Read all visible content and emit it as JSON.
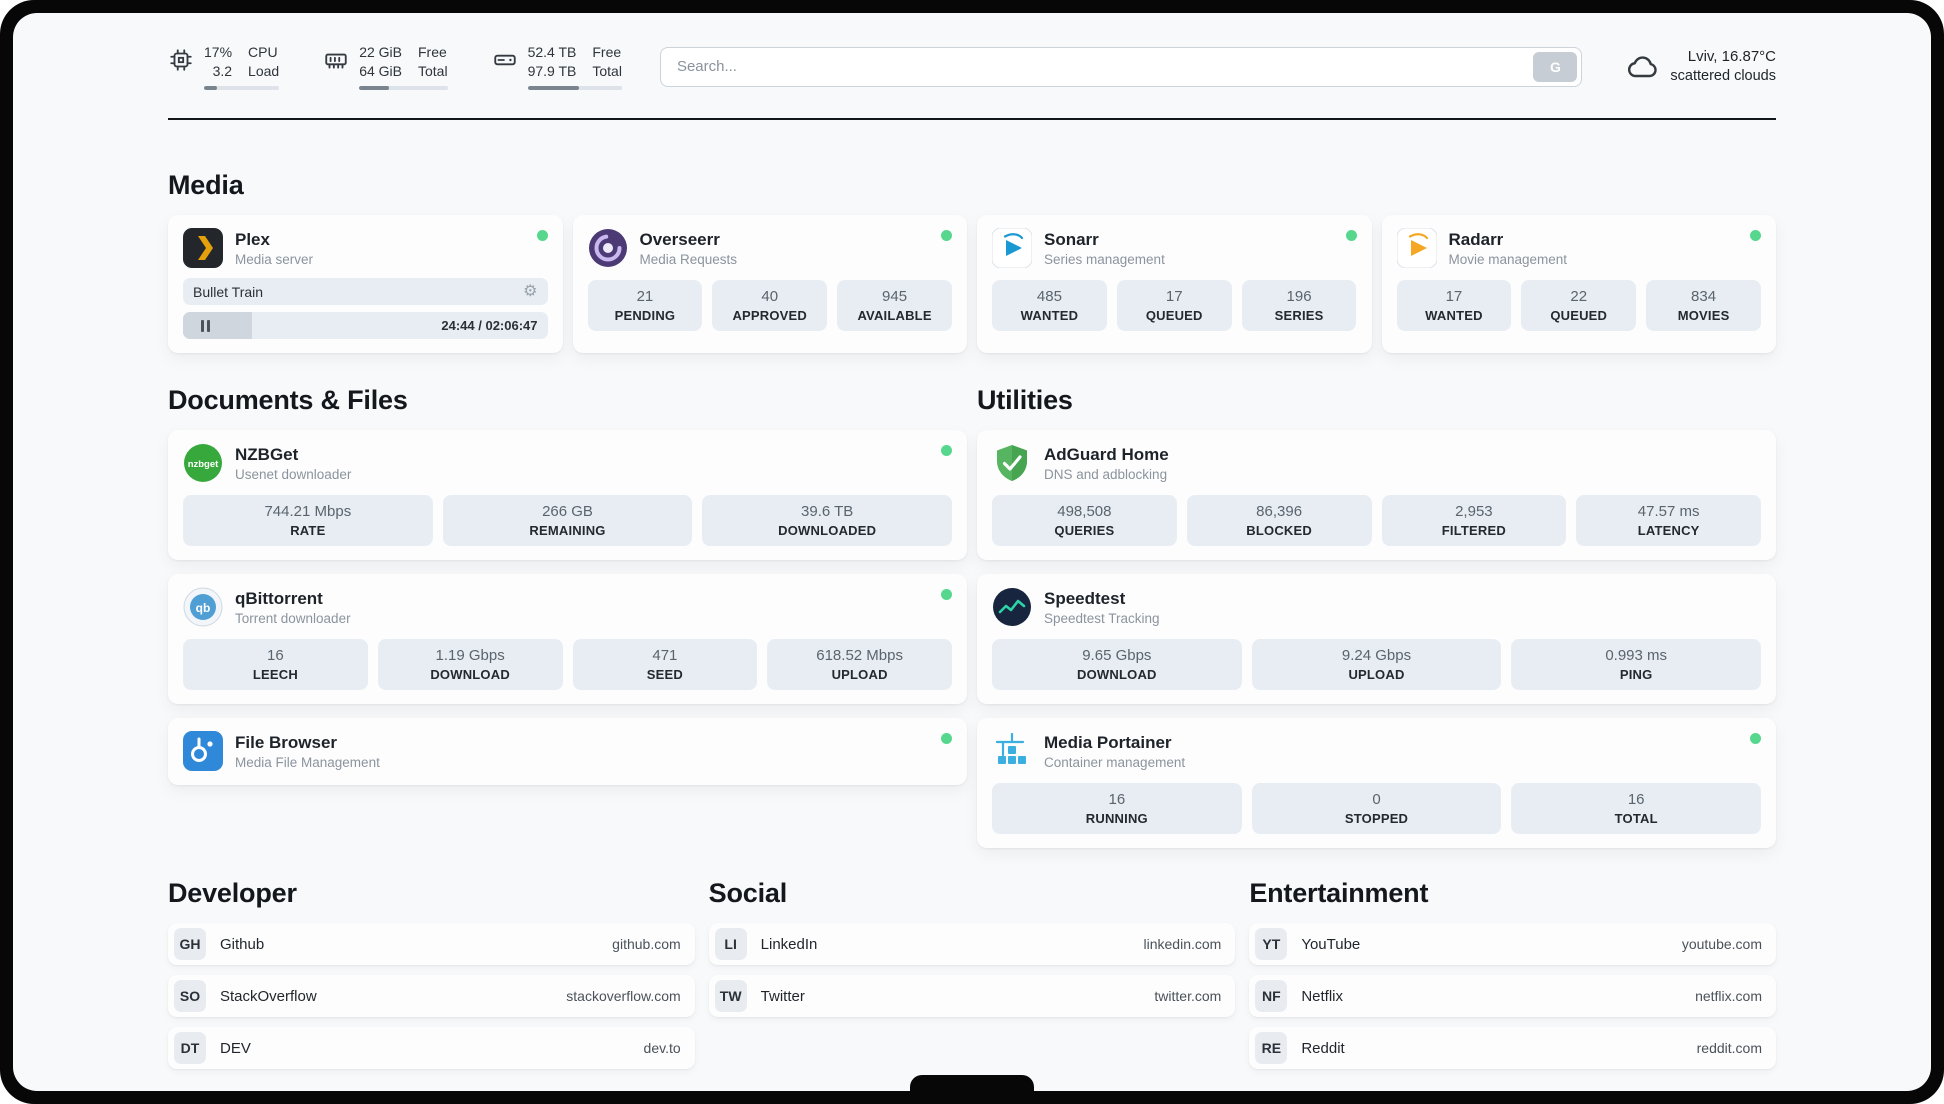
{
  "topbar": {
    "cpu": {
      "value_top": "17%",
      "value_bottom": "3.2",
      "label_top": "CPU",
      "label_bottom": "Load",
      "progress": 17
    },
    "memory": {
      "value_top": "22 GiB",
      "value_bottom": "64 GiB",
      "label_top": "Free",
      "label_bottom": "Total",
      "progress": 34
    },
    "disk": {
      "value_top": "52.4 TB",
      "value_bottom": "97.9 TB",
      "label_top": "Free",
      "label_bottom": "Total",
      "progress": 54
    },
    "search": {
      "placeholder": "Search...",
      "button_label": "G"
    },
    "weather": {
      "location": "Lviv, 16.87°C",
      "condition": "scattered clouds"
    }
  },
  "sections": {
    "media": "Media",
    "documents": "Documents & Files",
    "utilities": "Utilities",
    "developer": "Developer",
    "social": "Social",
    "entertainment": "Entertainment"
  },
  "apps": {
    "plex": {
      "name": "Plex",
      "subtitle": "Media server",
      "now_playing": "Bullet Train",
      "time": "24:44 / 02:06:47",
      "progress": 19
    },
    "overseerr": {
      "name": "Overseerr",
      "subtitle": "Media Requests",
      "stats": [
        {
          "value": "21",
          "label": "PENDING"
        },
        {
          "value": "40",
          "label": "APPROVED"
        },
        {
          "value": "945",
          "label": "AVAILABLE"
        }
      ]
    },
    "sonarr": {
      "name": "Sonarr",
      "subtitle": "Series management",
      "stats": [
        {
          "value": "485",
          "label": "WANTED"
        },
        {
          "value": "17",
          "label": "QUEUED"
        },
        {
          "value": "196",
          "label": "SERIES"
        }
      ]
    },
    "radarr": {
      "name": "Radarr",
      "subtitle": "Movie management",
      "stats": [
        {
          "value": "17",
          "label": "WANTED"
        },
        {
          "value": "22",
          "label": "QUEUED"
        },
        {
          "value": "834",
          "label": "MOVIES"
        }
      ]
    },
    "nzbget": {
      "name": "NZBGet",
      "subtitle": "Usenet downloader",
      "icon_text": "nzbget",
      "stats": [
        {
          "value": "744.21 Mbps",
          "label": "RATE"
        },
        {
          "value": "266 GB",
          "label": "REMAINING"
        },
        {
          "value": "39.6 TB",
          "label": "DOWNLOADED"
        }
      ]
    },
    "qbittorrent": {
      "name": "qBittorrent",
      "subtitle": "Torrent downloader",
      "icon_text": "qb",
      "stats": [
        {
          "value": "16",
          "label": "LEECH"
        },
        {
          "value": "1.19 Gbps",
          "label": "DOWNLOAD"
        },
        {
          "value": "471",
          "label": "SEED"
        },
        {
          "value": "618.52 Mbps",
          "label": "UPLOAD"
        }
      ]
    },
    "filebrowser": {
      "name": "File Browser",
      "subtitle": "Media File Management"
    },
    "adguard": {
      "name": "AdGuard Home",
      "subtitle": "DNS and adblocking",
      "stats": [
        {
          "value": "498,508",
          "label": "QUERIES"
        },
        {
          "value": "86,396",
          "label": "BLOCKED"
        },
        {
          "value": "2,953",
          "label": "FILTERED"
        },
        {
          "value": "47.57 ms",
          "label": "LATENCY"
        }
      ]
    },
    "speedtest": {
      "name": "Speedtest",
      "subtitle": "Speedtest Tracking",
      "stats": [
        {
          "value": "9.65 Gbps",
          "label": "DOWNLOAD"
        },
        {
          "value": "9.24 Gbps",
          "label": "UPLOAD"
        },
        {
          "value": "0.993 ms",
          "label": "PING"
        }
      ]
    },
    "portainer": {
      "name": "Media Portainer",
      "subtitle": "Container management",
      "stats": [
        {
          "value": "16",
          "label": "RUNNING"
        },
        {
          "value": "0",
          "label": "STOPPED"
        },
        {
          "value": "16",
          "label": "TOTAL"
        }
      ]
    }
  },
  "bookmarks": {
    "developer": [
      {
        "badge": "GH",
        "name": "Github",
        "url": "github.com"
      },
      {
        "badge": "SO",
        "name": "StackOverflow",
        "url": "stackoverflow.com"
      },
      {
        "badge": "DT",
        "name": "DEV",
        "url": "dev.to"
      }
    ],
    "social": [
      {
        "badge": "LI",
        "name": "LinkedIn",
        "url": "linkedin.com"
      },
      {
        "badge": "TW",
        "name": "Twitter",
        "url": "twitter.com"
      }
    ],
    "entertainment": [
      {
        "badge": "YT",
        "name": "YouTube",
        "url": "youtube.com"
      },
      {
        "badge": "NF",
        "name": "Netflix",
        "url": "netflix.com"
      },
      {
        "badge": "RE",
        "name": "Reddit",
        "url": "reddit.com"
      }
    ]
  },
  "icons": {
    "gear": "⚙"
  },
  "colors": {
    "status_green": "#57d78e",
    "accent_plex": "#e5a00d",
    "accent_sonarr": "#1999d3",
    "accent_radarr": "#f5a623",
    "accent_adguard": "#57b460",
    "accent_portainer": "#3bb0e0",
    "accent_overseerr": "#4c3a75",
    "accent_nzbget": "#37a93c",
    "accent_qbittorrent": "#4f9fd4",
    "accent_filebrowser": "#2f89d8"
  }
}
